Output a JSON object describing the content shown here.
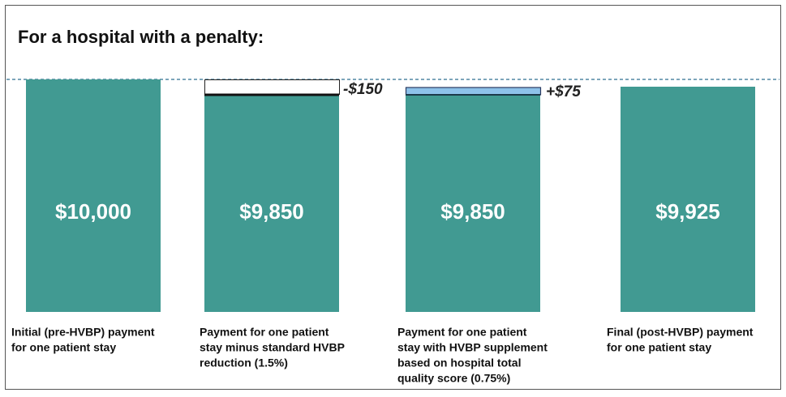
{
  "title": "For a hospital with a penalty:",
  "bars": [
    {
      "value_label": "$10,000",
      "caption": [
        "Initial (pre-HVBP) payment",
        "for one patient stay"
      ]
    },
    {
      "value_label": "$9,850",
      "change_label": "-$150",
      "caption": [
        "Payment for one patient",
        "stay minus standard HVBP",
        "reduction (1.5%)"
      ]
    },
    {
      "value_label": "$9,850",
      "change_label": "+$75",
      "caption": [
        "Payment for one patient",
        "stay with HVBP supplement",
        "based on hospital total",
        "quality score (0.75%)"
      ]
    },
    {
      "value_label": "$9,925",
      "caption": [
        "Final (post-HVBP) payment",
        "for one patient stay"
      ]
    }
  ]
}
